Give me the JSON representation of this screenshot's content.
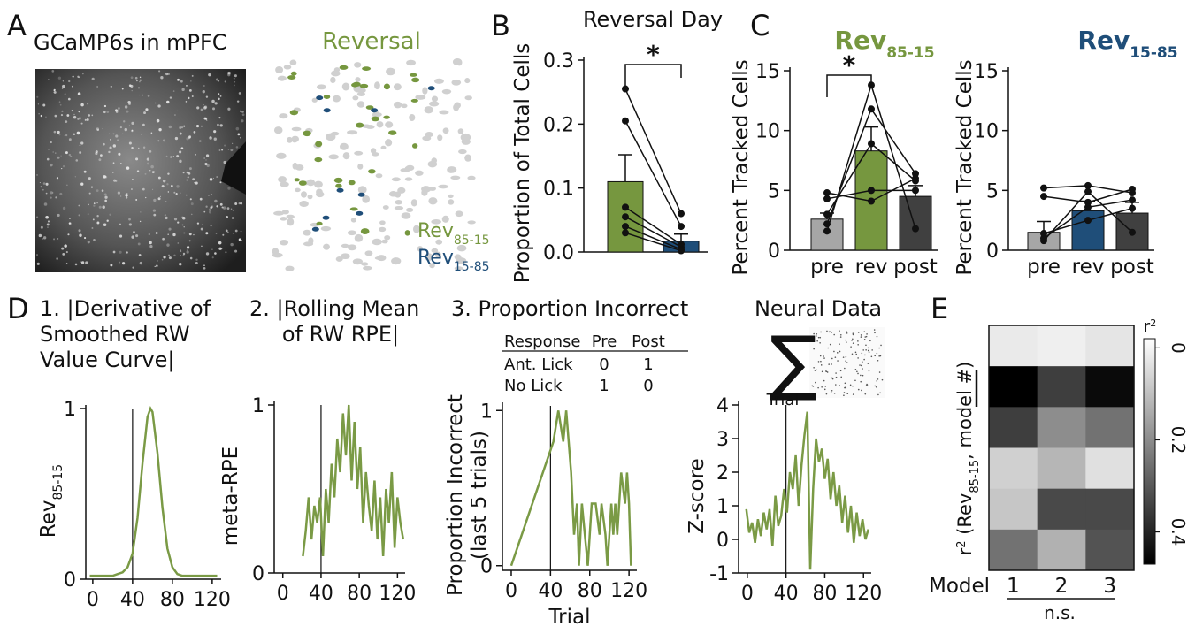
{
  "panel_labels": [
    "A",
    "B",
    "C",
    "D",
    "E"
  ],
  "panel_a": {
    "title": "GCaMP6s in mPFC",
    "map_title": "Reversal",
    "legend": [
      {
        "text": "Rev",
        "sub": "85-15",
        "color": "#76973f"
      },
      {
        "text": "Rev",
        "sub": "15-85",
        "color": "#1f4e79"
      }
    ]
  },
  "chart_data": [
    {
      "type": "bar",
      "title": "Reversal Day",
      "y_label": "Proportion of Total Cells",
      "categories": [
        null,
        null
      ],
      "values": [
        0.11,
        0.017
      ],
      "errors": [
        0.042,
        0.011
      ],
      "colors": [
        "#76973f",
        "#1f4e79"
      ],
      "ylim": [
        0,
        0.3
      ],
      "yticks": [
        {
          "value": 0,
          "label": "0.0"
        },
        0.1,
        0.2,
        0.3
      ],
      "individuals": [
        [
          0.255,
          0.06
        ],
        [
          0.205,
          0.04
        ],
        [
          0.07,
          0.012
        ],
        [
          0.055,
          0.008
        ],
        [
          0.04,
          0.004
        ],
        [
          0.03,
          0.002
        ]
      ],
      "significance": "*",
      "significance_between": [
        0,
        1
      ]
    },
    {
      "type": "bar",
      "title": {
        "text": "Rev",
        "sub": "85-15"
      },
      "title_color": "#76973f",
      "y_label": "Percent Tracked Cells",
      "categories": [
        "pre",
        "rev",
        "post"
      ],
      "values": [
        2.6,
        8.3,
        4.5
      ],
      "errors": [
        0.5,
        2.0,
        0.9
      ],
      "colors": [
        "#a6a6a6",
        "#76973f",
        "#404040"
      ],
      "ylim": [
        0,
        15
      ],
      "yticks": [
        0,
        5,
        10,
        15
      ],
      "individuals": [
        [
          1.6,
          13.8,
          1.8
        ],
        [
          2.2,
          11.8,
          6.4
        ],
        [
          3.0,
          8.9,
          5.8
        ],
        [
          4.3,
          5.0,
          5.0
        ],
        [
          4.8,
          4.1,
          6.0
        ]
      ],
      "significance": "*",
      "significance_between": [
        0,
        1
      ]
    },
    {
      "type": "bar",
      "title": {
        "text": "Rev",
        "sub": "15-85"
      },
      "title_color": "#1f4e79",
      "y_label": "Percent Tracked Cells",
      "categories": [
        "pre",
        "rev",
        "post"
      ],
      "values": [
        1.5,
        3.3,
        3.1
      ],
      "errors": [
        0.9,
        0.8,
        0.9
      ],
      "colors": [
        "#a6a6a6",
        "#1f4e79",
        "#404040"
      ],
      "ylim": [
        0,
        15
      ],
      "yticks": [
        0,
        5,
        10,
        15
      ],
      "individuals": [
        [
          5.2,
          5.4,
          4.8
        ],
        [
          4.5,
          4.0,
          5.1
        ],
        [
          0.8,
          4.9,
          1.5
        ],
        [
          1.0,
          3.6,
          4.2
        ],
        [
          1.4,
          2.5,
          3.5
        ]
      ]
    },
    {
      "type": "line",
      "title": [
        "1. |Derivative of",
        "Smoothed RW",
        "Value Curve|"
      ],
      "y_label": {
        "text": "Rev",
        "sub": "85-15"
      },
      "color": "#7a9a45",
      "vline": 40,
      "x": [
        -3,
        0,
        5,
        10,
        15,
        20,
        25,
        30,
        35,
        40,
        45,
        50,
        55,
        58,
        60,
        65,
        70,
        75,
        80,
        85,
        90,
        95,
        100,
        105,
        110,
        115,
        120,
        125
      ],
      "values": [
        0.02,
        0.02,
        0.02,
        0.02,
        0.02,
        0.02,
        0.03,
        0.04,
        0.07,
        0.15,
        0.36,
        0.68,
        0.95,
        1.0,
        0.98,
        0.74,
        0.42,
        0.18,
        0.07,
        0.03,
        0.02,
        0.02,
        0.02,
        0.02,
        0.02,
        0.02,
        0.02,
        0.02
      ],
      "xlim": [
        -7,
        129
      ],
      "ylim": [
        0,
        1
      ],
      "xticks": [
        0,
        40,
        80,
        120
      ],
      "yticks": [
        0,
        1
      ]
    },
    {
      "type": "line",
      "title": [
        "2. |Rolling Mean",
        "of RW RPE|"
      ],
      "y_label": "meta-RPE",
      "color": "#7a9a45",
      "vline": 40,
      "x": [
        21,
        24,
        27,
        30,
        33,
        36,
        39,
        42,
        45,
        48,
        51,
        54,
        57,
        60,
        63,
        66,
        69,
        72,
        75,
        78,
        81,
        84,
        87,
        90,
        93,
        96,
        99,
        102,
        105,
        108,
        111,
        114,
        117,
        120,
        123,
        126
      ],
      "values": [
        0.1,
        0.25,
        0.45,
        0.2,
        0.4,
        0.3,
        0.45,
        0.1,
        0.5,
        0.3,
        0.65,
        0.45,
        0.8,
        0.6,
        0.95,
        0.7,
        1.0,
        0.55,
        0.9,
        0.5,
        0.75,
        0.3,
        0.6,
        0.4,
        0.25,
        0.55,
        0.2,
        0.45,
        0.1,
        0.5,
        0.3,
        0.6,
        0.15,
        0.45,
        0.3,
        0.2
      ],
      "xlim": [
        -9,
        128
      ],
      "ylim": [
        0,
        1
      ],
      "xticks": [
        0,
        40,
        80,
        120
      ],
      "yticks": [
        0,
        1
      ]
    },
    {
      "type": "line",
      "title": [
        "3. Proportion Incorrect"
      ],
      "table": {
        "header": [
          "Response",
          "Pre",
          "Post"
        ],
        "rows": [
          [
            "Ant. Lick",
            0,
            1
          ],
          [
            "No Lick",
            1,
            0
          ]
        ]
      },
      "y_label": [
        "Proportion Incorrect",
        "(last 5 trials)"
      ],
      "x_label": "Trial",
      "color": "#7a9a45",
      "vline": 40,
      "x": [
        0,
        43,
        48,
        53,
        56,
        61,
        64,
        67,
        69,
        72,
        75,
        78,
        80,
        82,
        86,
        90,
        92,
        96,
        98,
        100,
        102,
        104,
        106,
        108,
        112,
        116,
        118,
        120,
        122
      ],
      "values": [
        0,
        0.8,
        1.0,
        0.8,
        1.0,
        0.6,
        0.2,
        0.4,
        0,
        0.4,
        0.2,
        0,
        0.2,
        0.4,
        0.4,
        0.2,
        0.4,
        0.2,
        0,
        0.2,
        0.4,
        0.2,
        0.4,
        0.2,
        0.6,
        0.4,
        0.6,
        0.4,
        0
      ],
      "xlim": [
        -9,
        128
      ],
      "ylim": [
        -0.03,
        1.03
      ],
      "xticks": [
        0,
        40,
        80,
        120
      ],
      "yticks": [
        0,
        1
      ]
    },
    {
      "type": "line",
      "title": [
        "Neural Data"
      ],
      "sum_symbol": "∑",
      "sum_label": "Trial",
      "y_label": "Z-score",
      "color": "#7a9a45",
      "vline": 40,
      "x": [
        -1,
        2,
        5,
        8,
        11,
        14,
        17,
        20,
        23,
        26,
        29,
        32,
        35,
        38,
        41,
        44,
        47,
        50,
        53,
        56,
        59,
        62,
        65,
        68,
        71,
        74,
        77,
        80,
        83,
        86,
        89,
        92,
        95,
        98,
        101,
        104,
        107,
        110,
        113,
        116,
        119,
        122,
        125
      ],
      "values": [
        0.9,
        0.2,
        0.5,
        -0.1,
        0.6,
        0.1,
        0.8,
        0.3,
        0.9,
        -0.2,
        1.3,
        0.4,
        0.7,
        1.5,
        0.8,
        2.0,
        1.5,
        2.5,
        1.0,
        2.2,
        3.1,
        3.8,
        -0.9,
        1.5,
        3.0,
        2.3,
        2.7,
        1.8,
        2.4,
        1.2,
        2.0,
        1.0,
        1.6,
        0.5,
        1.3,
        0.2,
        1.0,
        -0.1,
        0.8,
        0.1,
        0.6,
        0.0,
        0.3
      ],
      "xlim": [
        -9,
        128
      ],
      "ylim": [
        -1,
        4
      ],
      "xticks": [
        0,
        40,
        80,
        120
      ],
      "yticks": [
        -1,
        0,
        1,
        2,
        3,
        4
      ]
    },
    {
      "type": "heatmap",
      "x_label": "Model",
      "categories": [
        "1",
        "2",
        "3"
      ],
      "annotation": "n.s.",
      "y_label": {
        "text": "r",
        "sup": "2",
        "mid": " (Rev",
        "sub": "85-15",
        "end": ", model #)"
      },
      "colorbar_title": {
        "text": "r",
        "sup": "2"
      },
      "values": [
        [
          0.02,
          0.01,
          0.03
        ],
        [
          0.48,
          0.35,
          0.45
        ],
        [
          0.35,
          0.2,
          0.25
        ],
        [
          0.07,
          0.12,
          0.04
        ],
        [
          0.09,
          0.33,
          0.33
        ],
        [
          0.25,
          0.13,
          0.31
        ]
      ],
      "clim": [
        -0.02,
        0.47
      ],
      "cticks": [
        0,
        0.2,
        0.4
      ]
    }
  ]
}
